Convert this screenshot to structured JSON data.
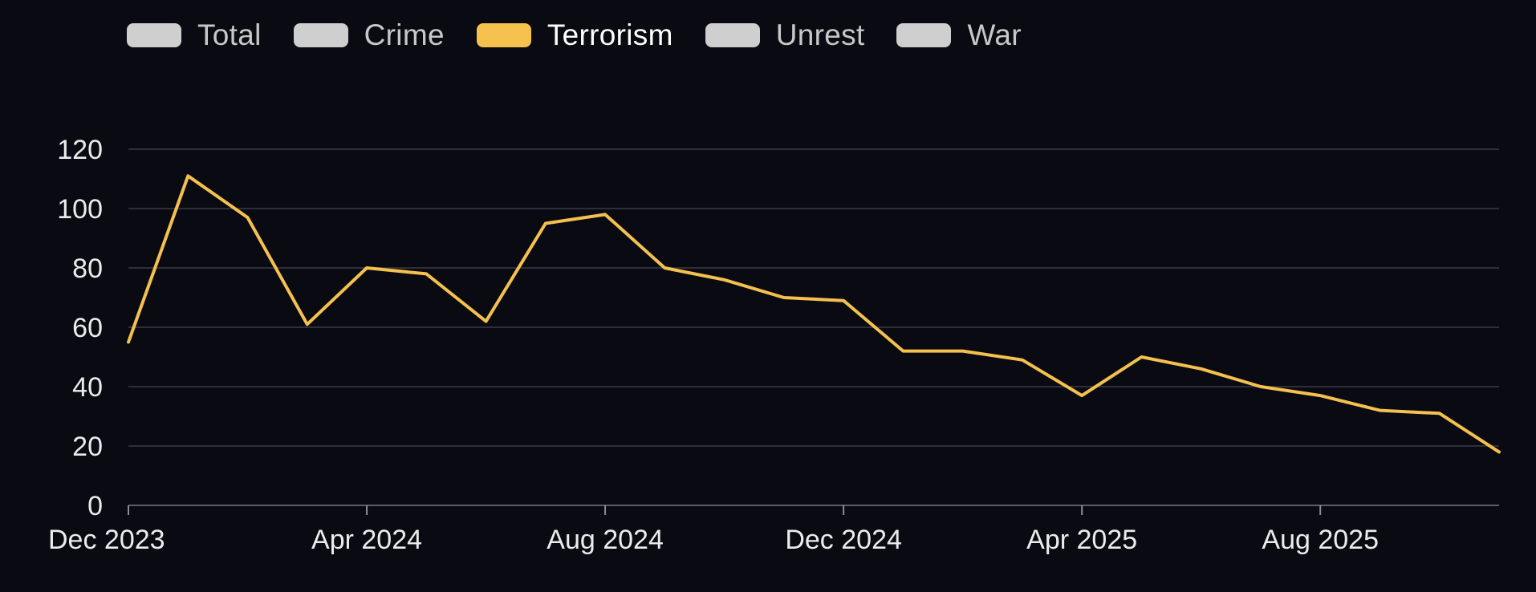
{
  "legend": {
    "items": [
      {
        "label": "Total",
        "color": "#cfcfcf",
        "active": false
      },
      {
        "label": "Crime",
        "color": "#cfcfcf",
        "active": false
      },
      {
        "label": "Terrorism",
        "color": "#f5c14e",
        "active": true
      },
      {
        "label": "Unrest",
        "color": "#cfcfcf",
        "active": false
      },
      {
        "label": "War",
        "color": "#cfcfcf",
        "active": false
      }
    ]
  },
  "chart_data": {
    "type": "line",
    "title": "",
    "xlabel": "",
    "ylabel": "",
    "ylim": [
      0,
      120
    ],
    "yticks": [
      0,
      20,
      40,
      60,
      80,
      100,
      120
    ],
    "xticks": [
      "Dec 2023",
      "Apr 2024",
      "Aug 2024",
      "Dec 2024",
      "Apr 2025",
      "Aug 2025"
    ],
    "grid": true,
    "legend_position": "top-left",
    "series": [
      {
        "name": "Terrorism",
        "color": "#f5c14e",
        "x": [
          "2023-12",
          "2024-01",
          "2024-02",
          "2024-03",
          "2024-04",
          "2024-05",
          "2024-06",
          "2024-07",
          "2024-08",
          "2024-09",
          "2024-10",
          "2024-11",
          "2024-12",
          "2025-01",
          "2025-02",
          "2025-03",
          "2025-04",
          "2025-05",
          "2025-06",
          "2025-07",
          "2025-08",
          "2025-09",
          "2025-10",
          "2025-11"
        ],
        "values": [
          55,
          111,
          97,
          61,
          80,
          78,
          62,
          95,
          98,
          80,
          76,
          70,
          69,
          52,
          52,
          49,
          37,
          50,
          46,
          40,
          37,
          32,
          31,
          18
        ]
      }
    ]
  }
}
